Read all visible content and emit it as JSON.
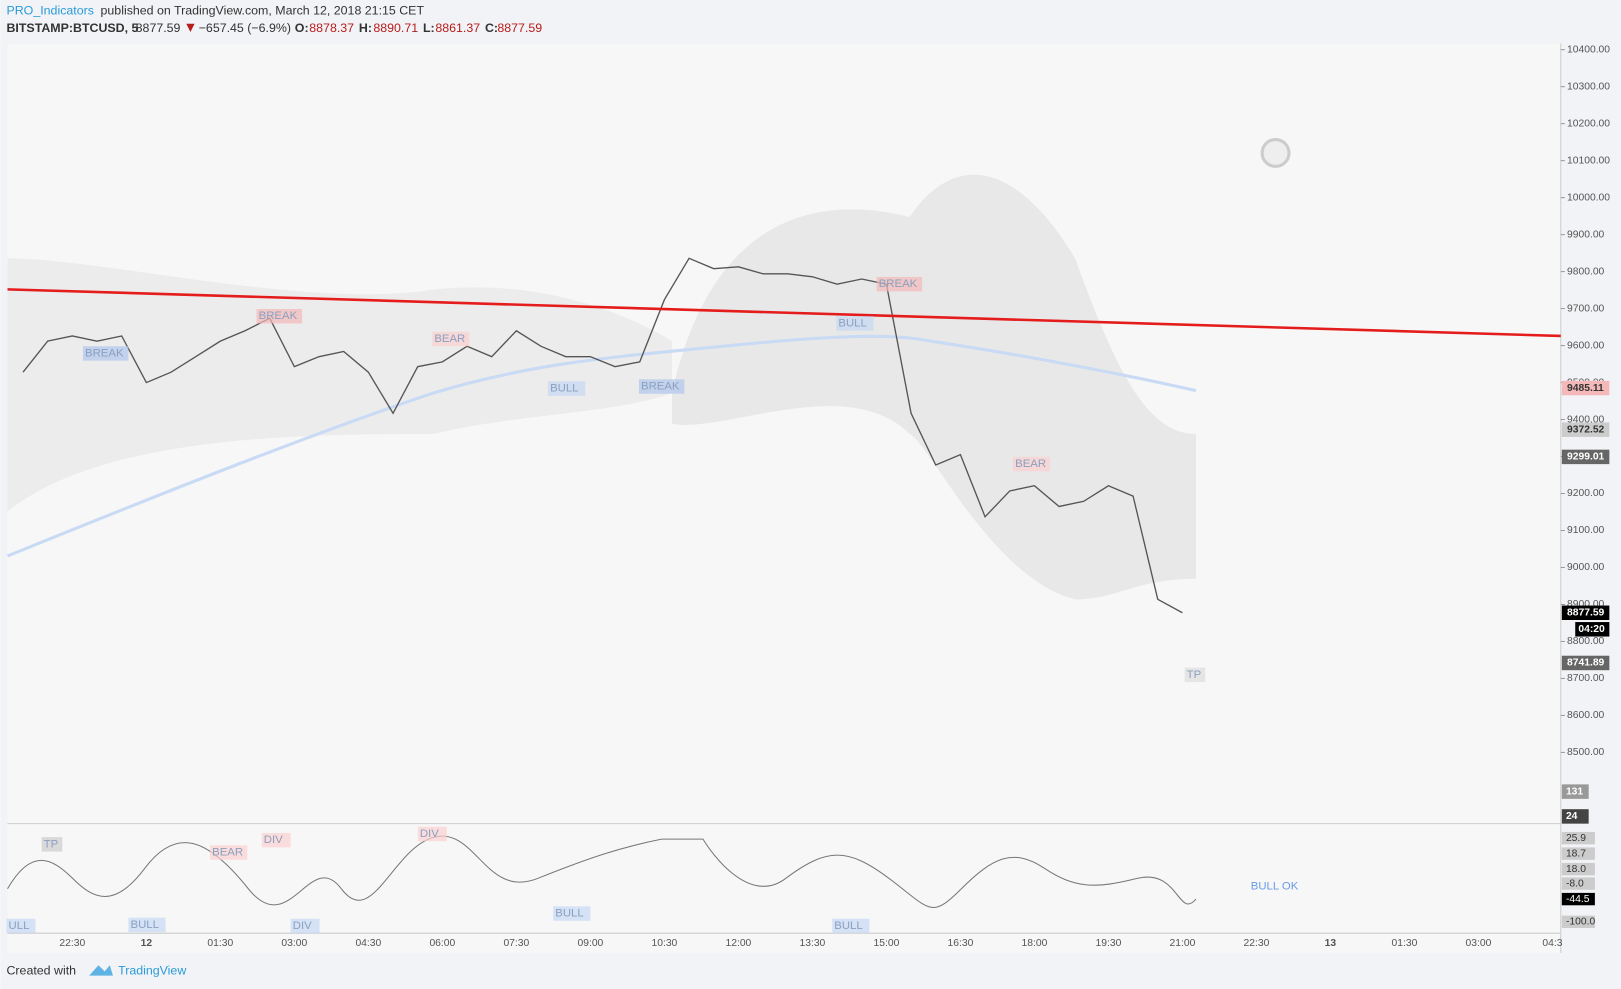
{
  "header": {
    "author": "PRO_Indicators",
    "published": "published on TradingView.com, March 12, 2018 21:15 CET",
    "symbol": "BITSTAMP:BTCUSD, 5",
    "last": "8877.59",
    "change": "−657.45 (−6.9%)",
    "open_label": "O:",
    "open": "8878.37",
    "high_label": "H:",
    "high": "8890.71",
    "low_label": "L:",
    "low": "8861.37",
    "close_label": "C:",
    "close": "8877.59"
  },
  "chart_data": {
    "type": "line",
    "color": "#555555",
    "categories": [
      null,
      null,
      "22:30",
      null,
      null,
      "12",
      null,
      null,
      "01:30",
      null,
      null,
      "03:00",
      null,
      null,
      "04:30",
      null,
      null,
      "06:00",
      null,
      null,
      "07:30",
      null,
      null,
      "09:00",
      null,
      null,
      "10:30",
      null,
      null,
      "12:00",
      null,
      null,
      "13:30",
      null,
      null,
      "15:00",
      null,
      null,
      "16:30",
      null,
      null,
      "18:00",
      null,
      null,
      "19:30",
      null,
      null,
      "21:00",
      null,
      null,
      "22:30",
      null,
      null,
      "13",
      null,
      null,
      "01:30",
      null,
      null,
      "03:00",
      null,
      null,
      "04:3"
    ],
    "values": [
      9528,
      9612,
      9626,
      9612,
      9626,
      9500,
      9528,
      9570,
      9612,
      9640,
      9674,
      9543,
      9570,
      9584,
      9528,
      9417,
      9543,
      9556,
      9598,
      9570,
      9640,
      9598,
      9570,
      9570,
      9543,
      9556,
      9724,
      9836,
      9808,
      9813,
      9794,
      9794,
      9786,
      9766,
      9780,
      9766,
      9417,
      9277,
      9305,
      9137,
      9207,
      9221,
      9165,
      9179,
      9221,
      9193,
      8914,
      8877.59,
      null,
      null,
      null,
      null,
      null,
      null,
      null,
      null,
      null,
      null,
      null,
      null,
      null,
      null,
      null
    ],
    "ylim": [
      8313,
      10417
    ],
    "yticks": [
      {
        "value": 8500,
        "label": "8500.00"
      },
      {
        "value": 8600,
        "label": "8600.00"
      },
      {
        "value": 8700,
        "label": "8700.00"
      },
      {
        "value": 8800,
        "label": "8800.00"
      },
      {
        "value": 8900,
        "label": "8900.00"
      },
      {
        "value": 9000,
        "label": "9000.00"
      },
      {
        "value": 9100,
        "label": "9100.00"
      },
      {
        "value": 9200,
        "label": "9200.00"
      },
      {
        "value": 9300,
        "label": "9300.00"
      },
      {
        "value": 9400,
        "label": "9400.00"
      },
      {
        "value": 9500,
        "label": "9500.00"
      },
      {
        "value": 9600,
        "label": "9600.00"
      },
      {
        "value": 9700,
        "label": "9700.00"
      },
      {
        "value": 9800,
        "label": "9800.00"
      },
      {
        "value": 9900,
        "label": "9900.00"
      },
      {
        "value": 10000,
        "label": "10000.00"
      },
      {
        "value": 10100,
        "label": "10100.00"
      },
      {
        "value": 10200,
        "label": "10200.00"
      },
      {
        "value": 10300,
        "label": "10300.00"
      },
      {
        "value": 10400,
        "label": "10400.00"
      }
    ],
    "trend_line": {
      "color": "#e51c1c",
      "start": 9752,
      "end": 9626
    },
    "price_labels": [
      {
        "value": 9485.11,
        "color": "#f4b8b8"
      },
      {
        "value": 9372.52,
        "color": "#cccccc"
      },
      {
        "value": 9299.01,
        "color": "#666666"
      },
      {
        "value": 8877.59,
        "color": "#000000"
      },
      {
        "value": 8741.89,
        "color": "#666666"
      }
    ],
    "countdown": "04:20",
    "volume_labels": [
      "131",
      "24"
    ],
    "annotations": [
      "BREAK",
      "BREAK",
      "BEAR",
      "BULL",
      "BREAK",
      "BULL",
      "BREAK",
      "BEAR",
      "TP",
      "TP",
      "BEAR",
      "DIV",
      "DIV",
      "ULL",
      "BULL",
      "DIV",
      "BULL",
      "BULL",
      "BULL OK"
    ],
    "oscillator_labels": [
      "25.9",
      "18.7",
      "18.0",
      "-8.0",
      "-44.5",
      "-100.0"
    ]
  },
  "footer": {
    "created": "Created with",
    "brand": "TradingView"
  }
}
